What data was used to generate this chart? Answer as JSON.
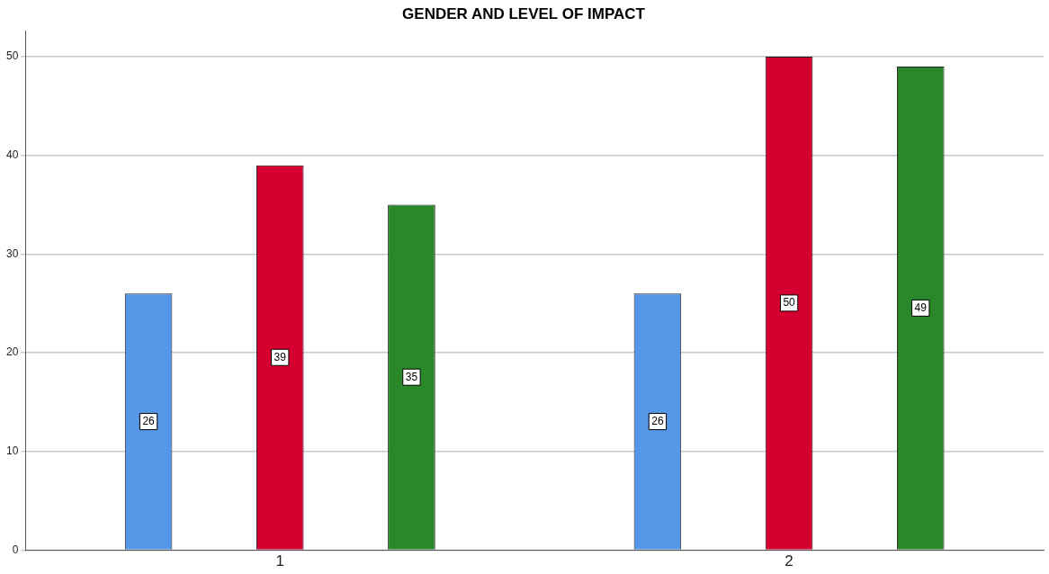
{
  "chart_data": {
    "type": "bar",
    "title": "GENDER AND LEVEL OF IMPACT",
    "categories": [
      "1",
      "2"
    ],
    "series": [
      {
        "color": "#5596e6",
        "values": [
          26,
          26
        ]
      },
      {
        "color": "#d5002f",
        "values": [
          39,
          50
        ]
      },
      {
        "color": "#2a882a",
        "values": [
          35,
          49
        ]
      }
    ],
    "ylim": [
      0,
      52.6
    ],
    "yticks": [
      0,
      10,
      20,
      30,
      40,
      50
    ],
    "grid": "y",
    "legend": false,
    "data_labels": true
  }
}
